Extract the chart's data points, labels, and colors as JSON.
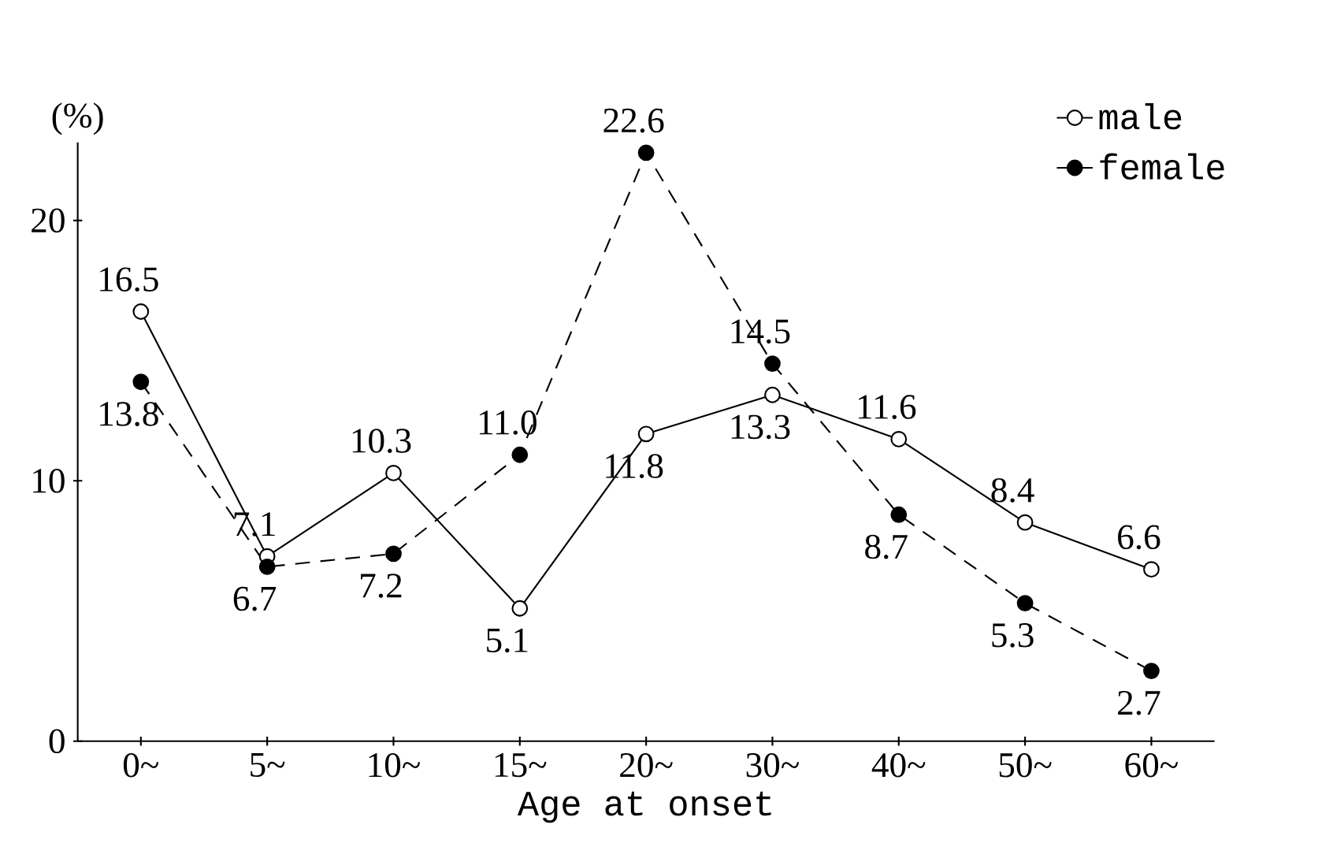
{
  "chart_data": {
    "type": "line",
    "xlabel": "Age at onset",
    "ylabel": "(%)",
    "categories": [
      "0~",
      "5~",
      "10~",
      "15~",
      "20~",
      "30~",
      "40~",
      "50~",
      "60~"
    ],
    "ylim": [
      0,
      23
    ],
    "yticks": [
      0,
      10,
      20
    ],
    "legend": "top right",
    "marker": "circle",
    "series": [
      {
        "name": "male",
        "color": "#000000",
        "line_style": "solid",
        "values": [
          16.5,
          7.1,
          10.3,
          5.1,
          11.8,
          13.3,
          11.6,
          8.4,
          6.6
        ],
        "value_labels": [
          "16.5",
          "7.1",
          "10.3",
          "5.1",
          "11.8",
          "13.3",
          "11.6",
          "8.4",
          "6.6"
        ]
      },
      {
        "name": "female",
        "color": "#000000",
        "line_style": "dashed",
        "values": [
          13.8,
          6.7,
          7.2,
          11.0,
          22.6,
          14.5,
          8.7,
          5.3,
          2.7
        ],
        "value_labels": [
          "13.8",
          "6.7",
          "7.2",
          "11.0",
          "22.6",
          "14.5",
          "8.7",
          "5.3",
          "2.7"
        ]
      }
    ]
  }
}
